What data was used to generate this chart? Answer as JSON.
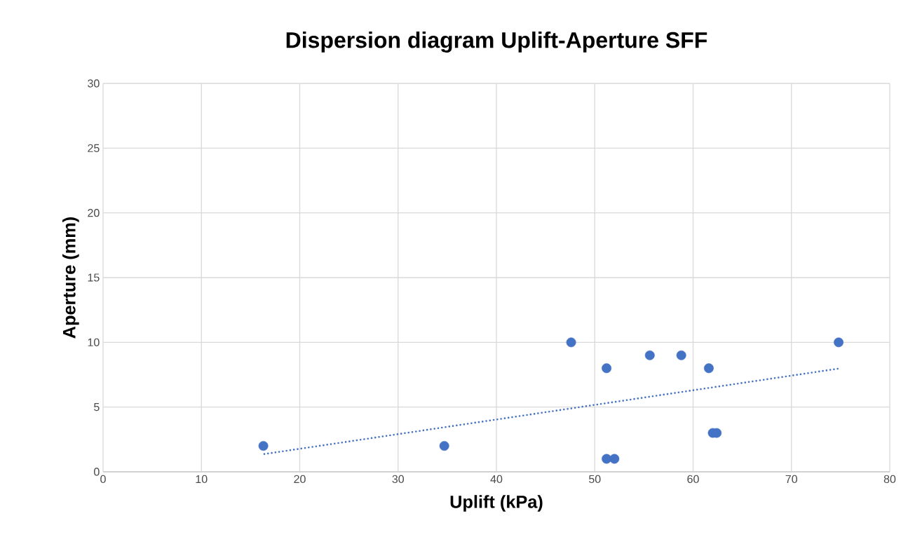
{
  "chart_data": {
    "type": "scatter",
    "title": "Dispersion diagram Uplift-Aperture SFF",
    "xlabel": "Uplift (kPa)",
    "ylabel": "Aperture (mm)",
    "xlim": [
      0,
      80
    ],
    "ylim": [
      0,
      30
    ],
    "xticks": [
      0,
      10,
      20,
      30,
      40,
      50,
      60,
      70,
      80
    ],
    "yticks": [
      0,
      5,
      10,
      15,
      20,
      25,
      30
    ],
    "grid": true,
    "legend": false,
    "series": [
      {
        "color": "#4472c4",
        "marker": "circle",
        "x": [
          16.3,
          34.7,
          47.6,
          51.2,
          51.2,
          52.0,
          55.6,
          58.8,
          61.6,
          62.0,
          62.4,
          74.8
        ],
        "values": [
          2,
          2,
          10,
          8,
          1,
          1,
          9,
          9,
          8,
          3,
          3,
          10
        ]
      },
      {
        "type": "line",
        "color": "#4472c4",
        "marker": "none",
        "line_style": "dotted",
        "x": [
          16.4,
          74.8
        ],
        "values": [
          1.37,
          7.97
        ]
      }
    ]
  }
}
